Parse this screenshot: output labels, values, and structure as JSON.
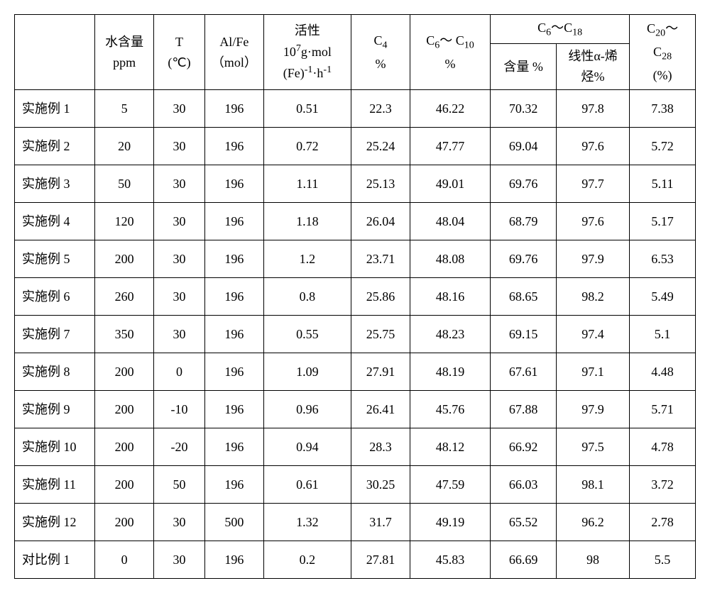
{
  "headers": {
    "blank": "",
    "water": {
      "l1": "水含量",
      "l2": "ppm"
    },
    "T": {
      "l1": "T",
      "l2": "(℃)"
    },
    "AlFe": {
      "l1": "Al/Fe",
      "l2": "（mol）"
    },
    "activity": {
      "l1": "活性",
      "l2_pre": "10",
      "l2_sup": "7",
      "l2_mid": "g·mol",
      "l3_pre": "(Fe)",
      "l3_sup": "-1",
      "l3_mid": "·h",
      "l3_sup2": "-1"
    },
    "C4": {
      "l1_pre": "C",
      "l1_sub": "4",
      "l2": "%"
    },
    "C6C10": {
      "l1_pre": "C",
      "l1_sub": "6",
      "l1_mid": "～ C",
      "l1_sub2": "10",
      "l2": "%"
    },
    "C6C18": {
      "top_pre": "C",
      "top_sub": "6",
      "top_mid": "～C",
      "top_sub2": "18",
      "content": "含量 %",
      "linear": {
        "l1": "线性α-烯",
        "l2": "烃%"
      }
    },
    "C20C28": {
      "l1_pre": "C",
      "l1_sub": "20",
      "l1_mid": "～",
      "l2_pre": "C",
      "l2_sub": "28",
      "l3": "(%)"
    }
  },
  "col_widths": [
    "110",
    "80",
    "70",
    "80",
    "120",
    "80",
    "110",
    "90",
    "100",
    "90"
  ],
  "rows": [
    {
      "label": "实施例 1",
      "water": "5",
      "T": "30",
      "AlFe": "196",
      "act": "0.51",
      "C4": "22.3",
      "C6C10": "46.22",
      "content": "70.32",
      "linear": "97.8",
      "C20C28": "7.38"
    },
    {
      "label": "实施例 2",
      "water": "20",
      "T": "30",
      "AlFe": "196",
      "act": "0.72",
      "C4": "25.24",
      "C6C10": "47.77",
      "content": "69.04",
      "linear": "97.6",
      "C20C28": "5.72"
    },
    {
      "label": "实施例 3",
      "water": "50",
      "T": "30",
      "AlFe": "196",
      "act": "1.11",
      "C4": "25.13",
      "C6C10": "49.01",
      "content": "69.76",
      "linear": "97.7",
      "C20C28": "5.11"
    },
    {
      "label": "实施例 4",
      "water": "120",
      "T": "30",
      "AlFe": "196",
      "act": "1.18",
      "C4": "26.04",
      "C6C10": "48.04",
      "content": "68.79",
      "linear": "97.6",
      "C20C28": "5.17"
    },
    {
      "label": "实施例 5",
      "water": "200",
      "T": "30",
      "AlFe": "196",
      "act": "1.2",
      "C4": "23.71",
      "C6C10": "48.08",
      "content": "69.76",
      "linear": "97.9",
      "C20C28": "6.53"
    },
    {
      "label": "实施例 6",
      "water": "260",
      "T": "30",
      "AlFe": "196",
      "act": "0.8",
      "C4": "25.86",
      "C6C10": "48.16",
      "content": "68.65",
      "linear": "98.2",
      "C20C28": "5.49"
    },
    {
      "label": "实施例 7",
      "water": "350",
      "T": "30",
      "AlFe": "196",
      "act": "0.55",
      "C4": "25.75",
      "C6C10": "48.23",
      "content": "69.15",
      "linear": "97.4",
      "C20C28": "5.1"
    },
    {
      "label": "实施例 8",
      "water": "200",
      "T": "0",
      "AlFe": "196",
      "act": "1.09",
      "C4": "27.91",
      "C6C10": "48.19",
      "content": "67.61",
      "linear": "97.1",
      "C20C28": "4.48"
    },
    {
      "label": "实施例 9",
      "water": "200",
      "T": "-10",
      "AlFe": "196",
      "act": "0.96",
      "C4": "26.41",
      "C6C10": "45.76",
      "content": "67.88",
      "linear": "97.9",
      "C20C28": "5.71"
    },
    {
      "label": "实施例 10",
      "water": "200",
      "T": "-20",
      "AlFe": "196",
      "act": "0.94",
      "C4": "28.3",
      "C6C10": "48.12",
      "content": "66.92",
      "linear": "97.5",
      "C20C28": "4.78"
    },
    {
      "label": "实施例 11",
      "water": "200",
      "T": "50",
      "AlFe": "196",
      "act": "0.61",
      "C4": "30.25",
      "C6C10": "47.59",
      "content": "66.03",
      "linear": "98.1",
      "C20C28": "3.72"
    },
    {
      "label": "实施例 12",
      "water": "200",
      "T": "30",
      "AlFe": "500",
      "act": "1.32",
      "C4": "31.7",
      "C6C10": "49.19",
      "content": "65.52",
      "linear": "96.2",
      "C20C28": "2.78"
    },
    {
      "label": "对比例 1",
      "water": "0",
      "T": "30",
      "AlFe": "196",
      "act": "0.2",
      "C4": "27.81",
      "C6C10": "45.83",
      "content": "66.69",
      "linear": "98",
      "C20C28": "5.5"
    }
  ]
}
